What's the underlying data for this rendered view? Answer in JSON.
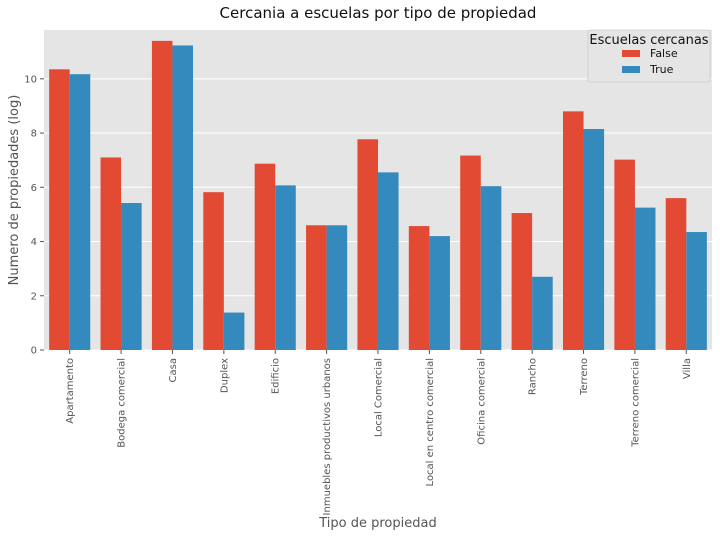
{
  "chart_data": {
    "type": "bar",
    "title": "Cercania a escuelas por tipo de propiedad",
    "xlabel": "Tipo de propiedad",
    "ylabel": "Numero de propiedades (log)",
    "ylim": [
      0,
      11.8
    ],
    "yticks": [
      0,
      2,
      4,
      6,
      8,
      10
    ],
    "grid": true,
    "legend": {
      "title": "Escuelas cercanas",
      "position": "top-right"
    },
    "categories": [
      "Apartamento",
      "Bodega comercial",
      "Casa",
      "Duplex",
      "Edificio",
      "Inmuebles productivos urbanos",
      "Local Comercial",
      "Local en centro comercial",
      "Oficina comercial",
      "Rancho",
      "Terreno",
      "Terreno comercial",
      "Villa"
    ],
    "series": [
      {
        "name": "False",
        "color": "#e24a33",
        "values": [
          10.35,
          7.1,
          11.4,
          5.82,
          6.87,
          4.6,
          7.77,
          4.57,
          7.17,
          5.05,
          8.8,
          7.02,
          5.6
        ]
      },
      {
        "name": "True",
        "color": "#348abd",
        "values": [
          10.17,
          5.42,
          11.23,
          1.38,
          6.07,
          4.6,
          6.55,
          4.2,
          6.04,
          2.7,
          8.15,
          5.25,
          4.35
        ]
      }
    ]
  }
}
